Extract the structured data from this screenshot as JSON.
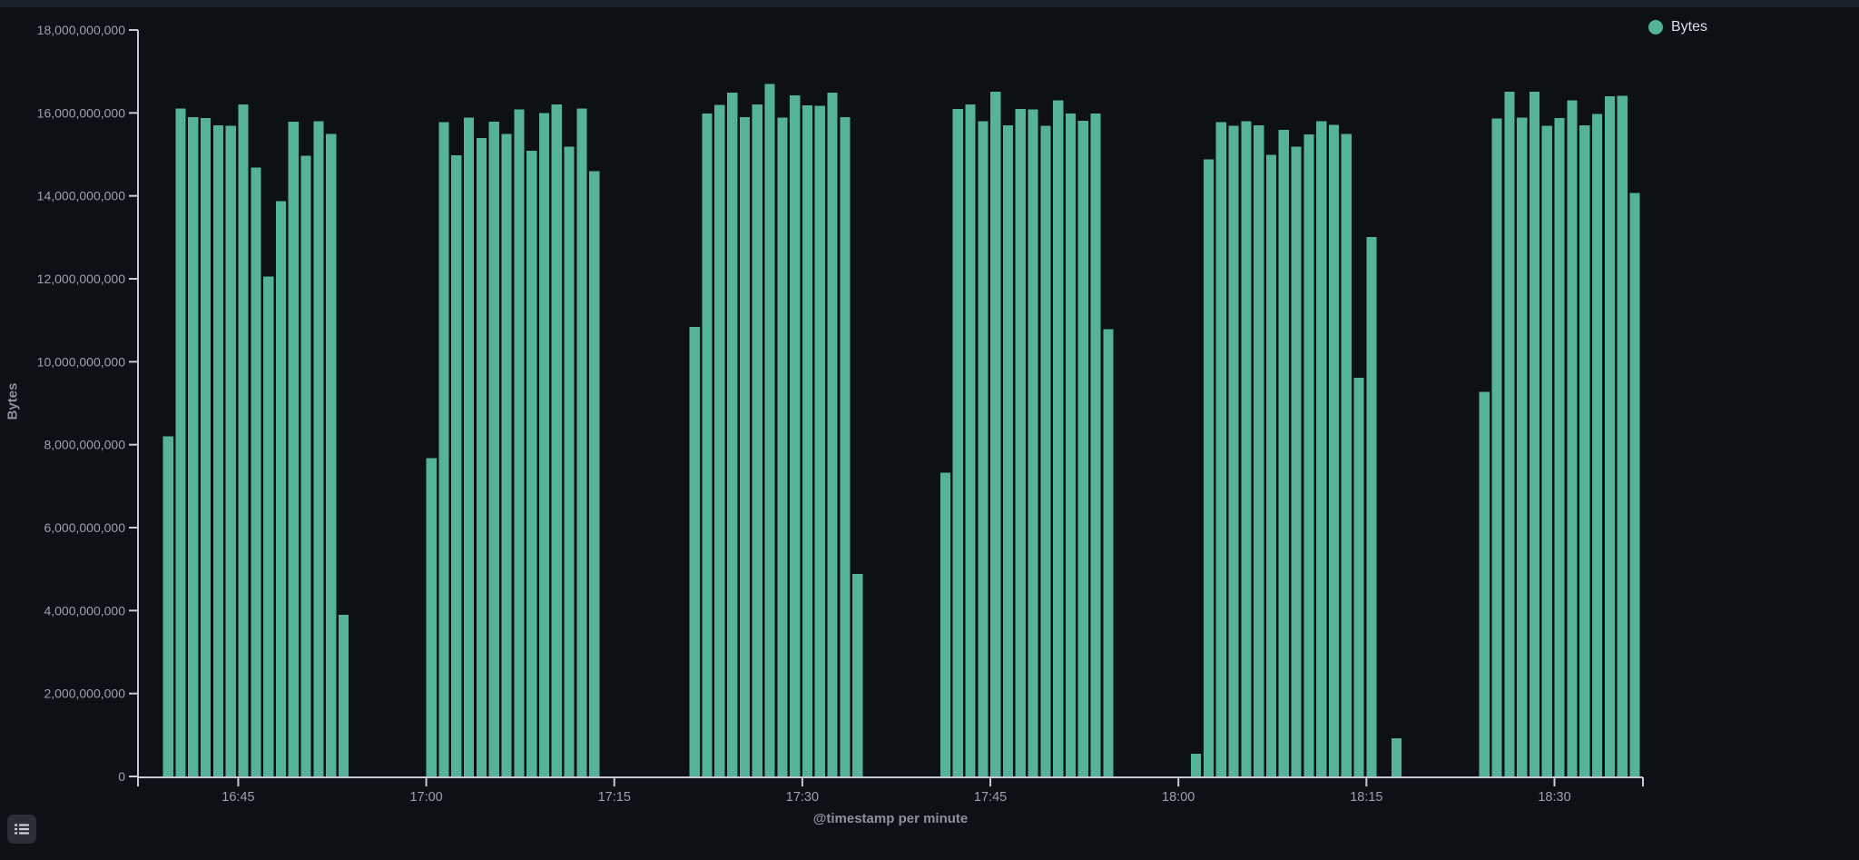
{
  "legend": {
    "position": "top-right",
    "items": [
      {
        "label": "Bytes",
        "color": "#54b399"
      }
    ]
  },
  "toolbar": {
    "legend_toggle_tooltip": "Toggle legend"
  },
  "colors": {
    "background": "#0d1116",
    "top_strip": "#1b222c",
    "bar": "#54b399",
    "axis_line": "#c6cbd3",
    "tick_label": "#9aa1ad",
    "axis_title": "#8b919e",
    "legend_text": "#d9dee7",
    "button_bg": "#2a2f36",
    "button_icon": "#cdd2da"
  },
  "chart_data": {
    "type": "bar",
    "title": "",
    "xlabel": "@timestamp per minute",
    "ylabel": "Bytes",
    "ylim": [
      0,
      18000000000
    ],
    "grid": false,
    "legend_position": "top-right",
    "y_ticks": [
      "0",
      "2,000,000,000",
      "4,000,000,000",
      "6,000,000,000",
      "8,000,000,000",
      "10,000,000,000",
      "12,000,000,000",
      "14,000,000,000",
      "16,000,000,000",
      "18,000,000,000"
    ],
    "x_ticks": [
      "16:45",
      "17:00",
      "17:15",
      "17:30",
      "17:45",
      "18:00",
      "18:15",
      "18:30"
    ],
    "bars": [
      {
        "t": "16:39",
        "v": 8200000000
      },
      {
        "t": "16:40",
        "v": 16110000000
      },
      {
        "t": "16:41",
        "v": 15900000000
      },
      {
        "t": "16:42",
        "v": 15880000000
      },
      {
        "t": "16:43",
        "v": 15700000000
      },
      {
        "t": "16:44",
        "v": 15690000000
      },
      {
        "t": "16:45",
        "v": 16210000000
      },
      {
        "t": "16:46",
        "v": 14680000000
      },
      {
        "t": "16:47",
        "v": 12060000000
      },
      {
        "t": "16:48",
        "v": 13870000000
      },
      {
        "t": "16:49",
        "v": 15790000000
      },
      {
        "t": "16:50",
        "v": 14970000000
      },
      {
        "t": "16:51",
        "v": 15800000000
      },
      {
        "t": "16:52",
        "v": 15490000000
      },
      {
        "t": "16:53",
        "v": 3900000000
      },
      {
        "t": "16:54",
        "v": 0
      },
      {
        "t": "16:55",
        "v": 0
      },
      {
        "t": "16:56",
        "v": 0
      },
      {
        "t": "16:57",
        "v": 0
      },
      {
        "t": "16:58",
        "v": 0
      },
      {
        "t": "16:59",
        "v": 0
      },
      {
        "t": "17:00",
        "v": 7680000000
      },
      {
        "t": "17:01",
        "v": 15780000000
      },
      {
        "t": "17:02",
        "v": 14980000000
      },
      {
        "t": "17:03",
        "v": 15890000000
      },
      {
        "t": "17:04",
        "v": 15390000000
      },
      {
        "t": "17:05",
        "v": 15790000000
      },
      {
        "t": "17:06",
        "v": 15490000000
      },
      {
        "t": "17:07",
        "v": 16090000000
      },
      {
        "t": "17:08",
        "v": 15090000000
      },
      {
        "t": "17:09",
        "v": 16000000000
      },
      {
        "t": "17:10",
        "v": 16210000000
      },
      {
        "t": "17:11",
        "v": 15190000000
      },
      {
        "t": "17:12",
        "v": 16110000000
      },
      {
        "t": "17:13",
        "v": 14600000000
      },
      {
        "t": "17:14",
        "v": 0
      },
      {
        "t": "17:15",
        "v": 0
      },
      {
        "t": "17:16",
        "v": 0
      },
      {
        "t": "17:17",
        "v": 0
      },
      {
        "t": "17:18",
        "v": 0
      },
      {
        "t": "17:19",
        "v": 0
      },
      {
        "t": "17:20",
        "v": 0
      },
      {
        "t": "17:21",
        "v": 10840000000
      },
      {
        "t": "17:22",
        "v": 15990000000
      },
      {
        "t": "17:23",
        "v": 16190000000
      },
      {
        "t": "17:24",
        "v": 16490000000
      },
      {
        "t": "17:25",
        "v": 15900000000
      },
      {
        "t": "17:26",
        "v": 16210000000
      },
      {
        "t": "17:27",
        "v": 16700000000
      },
      {
        "t": "17:28",
        "v": 15890000000
      },
      {
        "t": "17:29",
        "v": 16420000000
      },
      {
        "t": "17:30",
        "v": 16180000000
      },
      {
        "t": "17:31",
        "v": 16170000000
      },
      {
        "t": "17:32",
        "v": 16490000000
      },
      {
        "t": "17:33",
        "v": 15900000000
      },
      {
        "t": "17:34",
        "v": 4880000000
      },
      {
        "t": "17:35",
        "v": 0
      },
      {
        "t": "17:36",
        "v": 0
      },
      {
        "t": "17:37",
        "v": 0
      },
      {
        "t": "17:38",
        "v": 0
      },
      {
        "t": "17:39",
        "v": 0
      },
      {
        "t": "17:40",
        "v": 0
      },
      {
        "t": "17:41",
        "v": 7320000000
      },
      {
        "t": "17:42",
        "v": 16100000000
      },
      {
        "t": "17:43",
        "v": 16200000000
      },
      {
        "t": "17:44",
        "v": 15800000000
      },
      {
        "t": "17:45",
        "v": 16510000000
      },
      {
        "t": "17:46",
        "v": 15700000000
      },
      {
        "t": "17:47",
        "v": 16100000000
      },
      {
        "t": "17:48",
        "v": 16090000000
      },
      {
        "t": "17:49",
        "v": 15690000000
      },
      {
        "t": "17:50",
        "v": 16300000000
      },
      {
        "t": "17:51",
        "v": 15990000000
      },
      {
        "t": "17:52",
        "v": 15810000000
      },
      {
        "t": "17:53",
        "v": 15990000000
      },
      {
        "t": "17:54",
        "v": 10780000000
      },
      {
        "t": "17:55",
        "v": 0
      },
      {
        "t": "17:56",
        "v": 0
      },
      {
        "t": "17:57",
        "v": 0
      },
      {
        "t": "17:58",
        "v": 0
      },
      {
        "t": "17:59",
        "v": 0
      },
      {
        "t": "18:00",
        "v": 0
      },
      {
        "t": "18:01",
        "v": 550000000
      },
      {
        "t": "18:02",
        "v": 14880000000
      },
      {
        "t": "18:03",
        "v": 15780000000
      },
      {
        "t": "18:04",
        "v": 15690000000
      },
      {
        "t": "18:05",
        "v": 15800000000
      },
      {
        "t": "18:06",
        "v": 15700000000
      },
      {
        "t": "18:07",
        "v": 14990000000
      },
      {
        "t": "18:08",
        "v": 15590000000
      },
      {
        "t": "18:09",
        "v": 15190000000
      },
      {
        "t": "18:10",
        "v": 15480000000
      },
      {
        "t": "18:11",
        "v": 15800000000
      },
      {
        "t": "18:12",
        "v": 15710000000
      },
      {
        "t": "18:13",
        "v": 15490000000
      },
      {
        "t": "18:14",
        "v": 9610000000
      },
      {
        "t": "18:15",
        "v": 13010000000
      },
      {
        "t": "18:16",
        "v": 0
      },
      {
        "t": "18:17",
        "v": 920000000
      },
      {
        "t": "18:18",
        "v": 0
      },
      {
        "t": "18:19",
        "v": 0
      },
      {
        "t": "18:20",
        "v": 0
      },
      {
        "t": "18:21",
        "v": 0
      },
      {
        "t": "18:22",
        "v": 0
      },
      {
        "t": "18:23",
        "v": 0
      },
      {
        "t": "18:24",
        "v": 9270000000
      },
      {
        "t": "18:25",
        "v": 15870000000
      },
      {
        "t": "18:26",
        "v": 16510000000
      },
      {
        "t": "18:27",
        "v": 15890000000
      },
      {
        "t": "18:28",
        "v": 16510000000
      },
      {
        "t": "18:29",
        "v": 15690000000
      },
      {
        "t": "18:30",
        "v": 15880000000
      },
      {
        "t": "18:31",
        "v": 16300000000
      },
      {
        "t": "18:32",
        "v": 15700000000
      },
      {
        "t": "18:33",
        "v": 15980000000
      },
      {
        "t": "18:34",
        "v": 16400000000
      },
      {
        "t": "18:35",
        "v": 16410000000
      },
      {
        "t": "18:36",
        "v": 14070000000
      }
    ]
  }
}
